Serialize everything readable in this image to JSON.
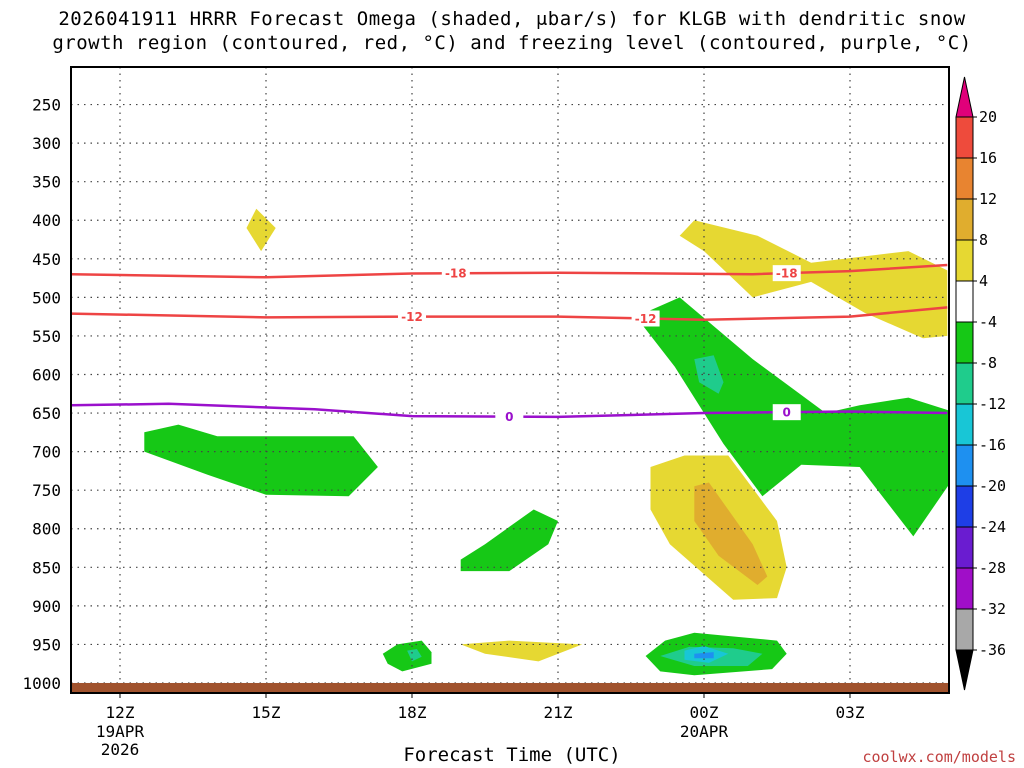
{
  "title_line1": "2026041911 HRRR Forecast Omega (shaded, μbar/s) for KLGB with dendritic snow",
  "title_line2": "growth region (contoured, red, °C) and freezing level (contoured, purple, °C)",
  "credit": "coolwx.com/models",
  "chart_data": {
    "type": "contour",
    "title": "2026041911 HRRR Forecast Omega (shaded, μbar/s) for KLGB with dendritic snow growth region (contoured, red, °C) and freezing level (contoured, purple, °C)",
    "xlabel": "Forecast Time (UTC)",
    "ylabel": "",
    "x_ticks": [
      {
        "hour": 0,
        "label": "12Z",
        "sub1": "19APR",
        "sub2": "2026"
      },
      {
        "hour": 3,
        "label": "15Z",
        "sub1": "",
        "sub2": ""
      },
      {
        "hour": 6,
        "label": "18Z",
        "sub1": "",
        "sub2": ""
      },
      {
        "hour": 9,
        "label": "21Z",
        "sub1": "",
        "sub2": ""
      },
      {
        "hour": 12,
        "label": "00Z",
        "sub1": "20APR",
        "sub2": ""
      },
      {
        "hour": 15,
        "label": "03Z",
        "sub1": "",
        "sub2": ""
      }
    ],
    "x_range_hours": [
      -1,
      17
    ],
    "y_ticks": [
      250,
      300,
      350,
      400,
      450,
      500,
      550,
      600,
      650,
      700,
      750,
      800,
      850,
      900,
      950,
      1000
    ],
    "y_range_mb": [
      200,
      1013
    ],
    "colorbar": {
      "labels": [
        "20",
        "16",
        "12",
        "8",
        "4",
        "-4",
        "-8",
        "-12",
        "-16",
        "-20",
        "-24",
        "-28",
        "-32",
        "-36"
      ],
      "bins": [
        {
          "lo": 20,
          "hi": 99,
          "color": "#e0007a"
        },
        {
          "lo": 16,
          "hi": 20,
          "color": "#ee4b3c"
        },
        {
          "lo": 12,
          "hi": 16,
          "color": "#e88430"
        },
        {
          "lo": 8,
          "hi": 12,
          "color": "#e0ad2e"
        },
        {
          "lo": 4,
          "hi": 8,
          "color": "#e6d832"
        },
        {
          "lo": -4,
          "hi": 4,
          "color": "#ffffff"
        },
        {
          "lo": -8,
          "hi": -4,
          "color": "#16c816"
        },
        {
          "lo": -12,
          "hi": -8,
          "color": "#1fcc8c"
        },
        {
          "lo": -16,
          "hi": -12,
          "color": "#18c6d6"
        },
        {
          "lo": -20,
          "hi": -16,
          "color": "#1e90f0"
        },
        {
          "lo": -24,
          "hi": -20,
          "color": "#1e3ee6"
        },
        {
          "lo": -28,
          "hi": -24,
          "color": "#6a1cd0"
        },
        {
          "lo": -32,
          "hi": -28,
          "color": "#a00ec8"
        },
        {
          "lo": -36,
          "hi": -32,
          "color": "#a8a8a8"
        },
        {
          "lo": -99,
          "hi": -36,
          "color": "#000000"
        }
      ]
    },
    "omega_regions": [
      {
        "name": "upper-ascent-small",
        "category": "4 to 8",
        "color": "#e6d832",
        "points": [
          [
            2.8,
            385
          ],
          [
            3.2,
            410
          ],
          [
            2.9,
            440
          ],
          [
            2.6,
            410
          ]
        ]
      },
      {
        "name": "upper-ascent-large",
        "category": "4 to 8",
        "color": "#e6d832",
        "points": [
          [
            11.8,
            400
          ],
          [
            13.1,
            420
          ],
          [
            14.2,
            455
          ],
          [
            16.2,
            440
          ],
          [
            17,
            465
          ],
          [
            17,
            550
          ],
          [
            16.5,
            553
          ],
          [
            15.3,
            520
          ],
          [
            14.2,
            480
          ],
          [
            13,
            500
          ],
          [
            12,
            440
          ],
          [
            11.5,
            420
          ]
        ]
      },
      {
        "name": "descent-15z",
        "category": "-4 to -8",
        "color": "#16c816",
        "points": [
          [
            0.5,
            675
          ],
          [
            1.2,
            665
          ],
          [
            2.0,
            680
          ],
          [
            4.8,
            680
          ],
          [
            5.3,
            720
          ],
          [
            4.7,
            758
          ],
          [
            3.0,
            756
          ],
          [
            1.8,
            730
          ],
          [
            0.5,
            700
          ]
        ]
      },
      {
        "name": "descent-00z-band",
        "category": "-4 to -8",
        "color": "#16c816",
        "points": [
          [
            10.6,
            525
          ],
          [
            11.5,
            500
          ],
          [
            13,
            580
          ],
          [
            14.5,
            650
          ],
          [
            15.2,
            640
          ],
          [
            16.2,
            630
          ],
          [
            17.2,
            650
          ],
          [
            17.5,
            700
          ],
          [
            16.3,
            810
          ],
          [
            15.2,
            720
          ],
          [
            14.0,
            717
          ],
          [
            13.2,
            758
          ],
          [
            12.4,
            690
          ],
          [
            11.4,
            590
          ]
        ]
      },
      {
        "name": "descent-00z-core",
        "category": "-8 to -12",
        "color": "#1fcc8c",
        "points": [
          [
            11.8,
            580
          ],
          [
            12.2,
            575
          ],
          [
            12.4,
            610
          ],
          [
            12.3,
            625
          ],
          [
            11.9,
            610
          ]
        ]
      },
      {
        "name": "descent-20z",
        "category": "-4 to -8",
        "color": "#16c816",
        "points": [
          [
            7.0,
            840
          ],
          [
            7.5,
            820
          ],
          [
            8.5,
            775
          ],
          [
            9.0,
            790
          ],
          [
            8.8,
            820
          ],
          [
            8.0,
            855
          ],
          [
            7.0,
            855
          ]
        ]
      },
      {
        "name": "ascent-2230z",
        "category": "4 to 8",
        "color": "#e6d832",
        "points": [
          [
            10.9,
            720
          ],
          [
            11.6,
            705
          ],
          [
            12.5,
            705
          ],
          [
            13.5,
            790
          ],
          [
            13.7,
            850
          ],
          [
            13.5,
            890
          ],
          [
            12.6,
            892
          ],
          [
            11.3,
            820
          ],
          [
            10.9,
            775
          ]
        ]
      },
      {
        "name": "ascent-2330z",
        "category": "8 to 12",
        "color": "#e0ad2e",
        "points": [
          [
            11.8,
            745
          ],
          [
            12.1,
            740
          ],
          [
            13.0,
            820
          ],
          [
            13.3,
            862
          ],
          [
            13.1,
            873
          ],
          [
            12.3,
            835
          ],
          [
            11.8,
            790
          ]
        ]
      },
      {
        "name": "ascent-21z-low",
        "category": "4 to 8",
        "color": "#e6d832",
        "points": [
          [
            7.0,
            950
          ],
          [
            8.0,
            945
          ],
          [
            9.5,
            950
          ],
          [
            8.6,
            972
          ],
          [
            7.5,
            962
          ]
        ]
      },
      {
        "name": "descent-18z-low",
        "category": "-4 to -8",
        "color": "#16c816",
        "points": [
          [
            5.4,
            962
          ],
          [
            5.7,
            950
          ],
          [
            6.2,
            945
          ],
          [
            6.4,
            960
          ],
          [
            6.4,
            975
          ],
          [
            5.8,
            985
          ],
          [
            5.5,
            975
          ]
        ]
      },
      {
        "name": "descent-18z-low-core",
        "category": "-8 to -12",
        "color": "#1fcc8c",
        "points": [
          [
            5.9,
            958
          ],
          [
            6.1,
            956
          ],
          [
            6.2,
            966
          ],
          [
            6.0,
            972
          ]
        ]
      },
      {
        "name": "descent-2330z-low",
        "category": "-4 to -8",
        "color": "#16c816",
        "points": [
          [
            10.8,
            965
          ],
          [
            11.2,
            945
          ],
          [
            11.8,
            935
          ],
          [
            13.5,
            945
          ],
          [
            13.7,
            962
          ],
          [
            13.4,
            982
          ],
          [
            11.8,
            990
          ],
          [
            11.1,
            985
          ]
        ]
      },
      {
        "name": "descent-2330z-low-mid",
        "category": "-8 to -12",
        "color": "#1fcc8c",
        "points": [
          [
            11.1,
            965
          ],
          [
            11.7,
            953
          ],
          [
            12.6,
            955
          ],
          [
            13.2,
            962
          ],
          [
            12.9,
            978
          ],
          [
            11.8,
            978
          ]
        ]
      },
      {
        "name": "descent-2330z-low-core",
        "category": "-12 to -16",
        "color": "#18c6d6",
        "points": [
          [
            11.6,
            958
          ],
          [
            12.0,
            952
          ],
          [
            12.5,
            962
          ],
          [
            12.1,
            974
          ],
          [
            11.6,
            970
          ]
        ]
      },
      {
        "name": "descent-2330z-low-max",
        "category": "-16 to -20",
        "color": "#1e90f0",
        "points": [
          [
            11.8,
            962
          ],
          [
            12.2,
            960
          ],
          [
            12.2,
            968
          ],
          [
            11.8,
            968
          ]
        ]
      }
    ],
    "contours": [
      {
        "name": "isotherm-minus18",
        "label": "-18",
        "color": "#ee4444",
        "label_hours": [
          6.9,
          13.7
        ],
        "points": [
          [
            -1,
            470
          ],
          [
            3,
            474
          ],
          [
            6,
            469
          ],
          [
            9,
            468
          ],
          [
            13,
            470
          ],
          [
            15,
            466
          ],
          [
            17,
            458
          ]
        ]
      },
      {
        "name": "isotherm-minus12",
        "label": "-12",
        "color": "#ee4444",
        "label_hours": [
          6.0,
          10.8
        ],
        "points": [
          [
            -1,
            521
          ],
          [
            3,
            526
          ],
          [
            6,
            525
          ],
          [
            9,
            525
          ],
          [
            12,
            529
          ],
          [
            15,
            525
          ],
          [
            17,
            513
          ]
        ]
      },
      {
        "name": "freezing-level",
        "label": "0",
        "color": "#9a10cc",
        "label_hours": [
          8.0,
          13.7
        ],
        "points": [
          [
            -1,
            640
          ],
          [
            1,
            638
          ],
          [
            4,
            645
          ],
          [
            6,
            654
          ],
          [
            9,
            655
          ],
          [
            12,
            650
          ],
          [
            15,
            648
          ],
          [
            17,
            650
          ]
        ]
      }
    ],
    "terrain": {
      "label": "surface",
      "above_mb": 1000,
      "color": "#a0522d"
    }
  }
}
